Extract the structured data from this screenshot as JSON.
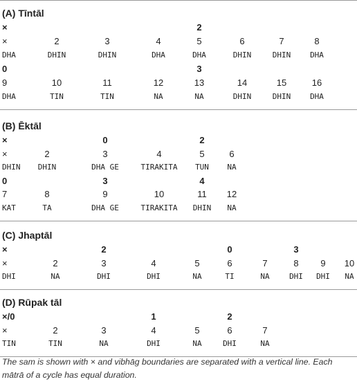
{
  "sections": [
    {
      "title": "(A) Tīntāl",
      "rows": [
        [
          "×",
          null,
          null,
          null,
          "2",
          null,
          null,
          null
        ],
        [
          "×",
          "2",
          "3",
          "4",
          "5",
          "6",
          "7",
          "8"
        ],
        [
          "DHA",
          "DHIN",
          "DHIN",
          "DHA",
          "DHA",
          "DHIN",
          "DHIN",
          "DHA"
        ],
        [
          "0",
          null,
          null,
          null,
          "3",
          null,
          null,
          null
        ],
        [
          "9",
          "10",
          "11",
          "12",
          "13",
          "14",
          "15",
          "16"
        ],
        [
          "DHA",
          "TIN",
          "TIN",
          "NA",
          "NA",
          "DHIN",
          "DHIN",
          "DHA"
        ]
      ]
    },
    {
      "title": "(B) Ēktāl",
      "rows": [
        [
          "×",
          null,
          "0",
          null,
          "2",
          null
        ],
        [
          "×",
          "2",
          "3",
          "4",
          "5",
          "6"
        ],
        [
          "DHIN",
          "DHIN",
          "DHA GE",
          "TIRAKITA",
          "TUN",
          "NA"
        ],
        [
          "0",
          null,
          "3",
          null,
          "4",
          null
        ],
        [
          "7",
          "8",
          "9",
          "10",
          "11",
          "12"
        ],
        [
          "KAT",
          "TA",
          "DHA GE",
          "TIRAKITA",
          "DHIN",
          "NA"
        ]
      ]
    },
    {
      "title": "(C) Jhaptāl",
      "rows": [
        [
          "×",
          null,
          "2",
          null,
          null,
          "0",
          null,
          "3",
          null,
          null
        ],
        [
          "×",
          "2",
          "3",
          "4",
          "5",
          "6",
          "7",
          "8",
          "9",
          "10"
        ],
        [
          "DHI",
          "NA",
          "DHI",
          "DHI",
          "NA",
          "TI",
          "NA",
          "DHI",
          "DHI",
          "NA"
        ]
      ]
    },
    {
      "title": "(D) Rūpak tāl",
      "rows": [
        [
          "×/0",
          null,
          null,
          "1",
          null,
          "2",
          null
        ],
        [
          "×",
          "2",
          "3",
          "4",
          "5",
          "6",
          "7"
        ],
        [
          "TIN",
          "TIN",
          "NA",
          "DHI",
          "NA",
          "DHI",
          "NA"
        ]
      ]
    }
  ],
  "caption": "The sam is shown with × and vibhāg boundaries are separated with a vertical line. Each mātrā of a cycle has equal duration."
}
